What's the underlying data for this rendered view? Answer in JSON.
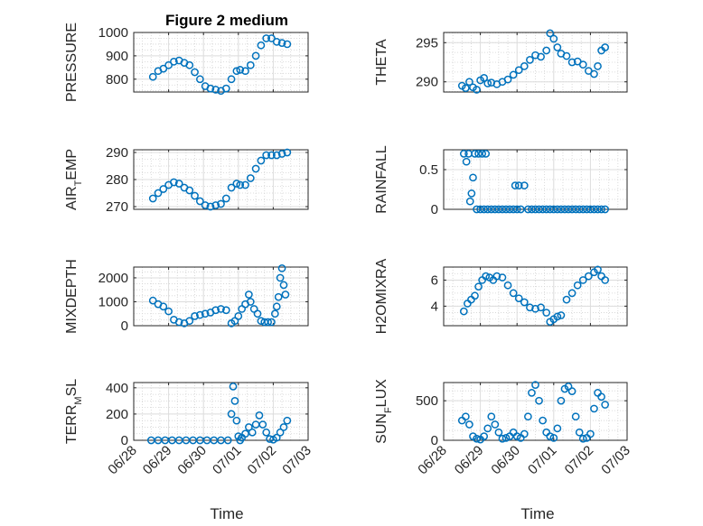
{
  "figure": {
    "title": "Figure 2 medium",
    "xlabel": "Time",
    "x_tick_labels": [
      "06/28",
      "06/29",
      "06/30",
      "07/01",
      "07/02",
      "07/03"
    ],
    "marker_color": "#0072bd"
  },
  "chart_data": [
    {
      "type": "scatter",
      "ylabel": "PRESSURE",
      "xlim": [
        "06/28",
        "07/03"
      ],
      "ylim": [
        745,
        1000
      ],
      "yticks": [
        800,
        900,
        1000
      ],
      "x": [
        0.55,
        0.7,
        0.85,
        1.0,
        1.15,
        1.3,
        1.45,
        1.6,
        1.75,
        1.9,
        2.05,
        2.2,
        2.35,
        2.5,
        2.65,
        2.8,
        2.95,
        3.05,
        3.2,
        3.35,
        3.5,
        3.65,
        3.8,
        3.95,
        4.1,
        4.25,
        4.4
      ],
      "y": [
        810,
        835,
        845,
        860,
        875,
        880,
        870,
        860,
        830,
        800,
        770,
        760,
        755,
        750,
        760,
        800,
        835,
        840,
        835,
        860,
        900,
        945,
        975,
        975,
        960,
        955,
        950
      ]
    },
    {
      "type": "scatter",
      "ylabel": "THETA",
      "xlim": [
        "06/28",
        "07/03"
      ],
      "ylim": [
        288.7,
        296.3
      ],
      "yticks": [
        290,
        295
      ],
      "x": [
        0.5,
        0.6,
        0.7,
        0.8,
        0.9,
        1.0,
        1.1,
        1.2,
        1.3,
        1.45,
        1.6,
        1.75,
        1.9,
        2.05,
        2.2,
        2.35,
        2.5,
        2.65,
        2.8,
        2.9,
        3.0,
        3.1,
        3.2,
        3.35,
        3.5,
        3.65,
        3.8,
        3.95,
        4.1,
        4.2,
        4.3,
        4.4
      ],
      "y": [
        289.5,
        289.2,
        290.0,
        289.3,
        289.0,
        290.2,
        290.5,
        289.8,
        289.9,
        289.7,
        290.0,
        290.3,
        290.9,
        291.5,
        292.0,
        292.8,
        293.4,
        293.2,
        294.0,
        296.2,
        295.5,
        294.4,
        293.6,
        293.3,
        292.5,
        292.6,
        292.2,
        291.4,
        291.0,
        292.0,
        294.0,
        294.4
      ]
    },
    {
      "type": "scatter",
      "ylabel": "AIR_TEMP",
      "ylabel_main": "AIR",
      "ylabel_sub": "T",
      "ylabel_rest": "EMP",
      "xlim": [
        "06/28",
        "07/03"
      ],
      "ylim": [
        269,
        291
      ],
      "yticks": [
        270,
        280,
        290
      ],
      "x": [
        0.55,
        0.7,
        0.85,
        1.0,
        1.15,
        1.3,
        1.45,
        1.6,
        1.75,
        1.9,
        2.05,
        2.2,
        2.35,
        2.5,
        2.65,
        2.8,
        2.95,
        3.05,
        3.2,
        3.35,
        3.5,
        3.65,
        3.8,
        3.95,
        4.1,
        4.25,
        4.4
      ],
      "y": [
        273.0,
        275.0,
        276.5,
        278.0,
        279.0,
        278.5,
        277.0,
        276.0,
        274.0,
        272.0,
        270.5,
        270.0,
        270.5,
        271.0,
        273.0,
        277.0,
        278.5,
        278.0,
        278.0,
        280.5,
        284.0,
        287.0,
        289.0,
        289.0,
        289.0,
        289.5,
        290.0
      ]
    },
    {
      "type": "scatter",
      "ylabel": "RAINFALL",
      "xlim": [
        "06/28",
        "07/03"
      ],
      "ylim": [
        0,
        0.75
      ],
      "yticks": [
        0,
        0.5
      ],
      "x": [
        0.55,
        0.62,
        0.68,
        0.72,
        0.76,
        0.8,
        0.85,
        0.9,
        0.95,
        1.0,
        1.05,
        1.1,
        1.15,
        1.2,
        1.3,
        1.4,
        1.5,
        1.6,
        1.7,
        1.8,
        1.9,
        1.95,
        2.0,
        2.05,
        2.1,
        2.2,
        2.3,
        2.4,
        2.5,
        2.6,
        2.7,
        2.8,
        2.9,
        3.0,
        3.1,
        3.2,
        3.3,
        3.4,
        3.5,
        3.6,
        3.7,
        3.8,
        3.9,
        4.0,
        4.1,
        4.2,
        4.3,
        4.4
      ],
      "y": [
        0.7,
        0.6,
        0.7,
        0.1,
        0.2,
        0.4,
        0.7,
        0.0,
        0.7,
        0.0,
        0.7,
        0.0,
        0.7,
        0.0,
        0.0,
        0.0,
        0.0,
        0.0,
        0.0,
        0.0,
        0.0,
        0.3,
        0.0,
        0.3,
        0.0,
        0.3,
        0.0,
        0.0,
        0.0,
        0.0,
        0.0,
        0.0,
        0.0,
        0.0,
        0.0,
        0.0,
        0.0,
        0.0,
        0.0,
        0.0,
        0.0,
        0.0,
        0.0,
        0.0,
        0.0,
        0.0,
        0.0,
        0.0
      ]
    },
    {
      "type": "scatter",
      "ylabel": "MIXDEPTH",
      "xlim": [
        "06/28",
        "07/03"
      ],
      "ylim": [
        0,
        2450
      ],
      "yticks": [
        0,
        1000,
        2000
      ],
      "x": [
        0.55,
        0.7,
        0.85,
        1.0,
        1.15,
        1.3,
        1.45,
        1.6,
        1.75,
        1.9,
        2.05,
        2.2,
        2.35,
        2.5,
        2.65,
        2.8,
        2.9,
        3.0,
        3.1,
        3.2,
        3.3,
        3.35,
        3.45,
        3.55,
        3.65,
        3.75,
        3.85,
        3.95,
        4.05,
        4.1,
        4.15,
        4.2,
        4.25,
        4.3,
        4.35
      ],
      "y": [
        1050,
        900,
        800,
        600,
        250,
        150,
        100,
        200,
        400,
        450,
        500,
        550,
        650,
        700,
        650,
        100,
        200,
        400,
        700,
        900,
        1300,
        1000,
        700,
        500,
        200,
        150,
        150,
        150,
        500,
        800,
        1200,
        2000,
        2400,
        1700,
        1300
      ]
    },
    {
      "type": "scatter",
      "ylabel": "H2OMIXRA",
      "xlim": [
        "06/28",
        "07/03"
      ],
      "ylim": [
        2.5,
        7
      ],
      "yticks": [
        4,
        6
      ],
      "x": [
        0.55,
        0.65,
        0.75,
        0.85,
        0.95,
        1.05,
        1.15,
        1.25,
        1.35,
        1.45,
        1.6,
        1.75,
        1.9,
        2.05,
        2.2,
        2.35,
        2.5,
        2.65,
        2.8,
        2.9,
        3.0,
        3.1,
        3.2,
        3.35,
        3.5,
        3.65,
        3.8,
        3.95,
        4.1,
        4.2,
        4.3,
        4.4
      ],
      "y": [
        3.6,
        4.2,
        4.5,
        4.8,
        5.5,
        6.0,
        6.3,
        6.2,
        6.0,
        6.3,
        6.2,
        5.6,
        5.0,
        4.6,
        4.3,
        3.9,
        3.8,
        3.9,
        3.5,
        2.8,
        3.0,
        3.2,
        3.3,
        4.5,
        5.0,
        5.6,
        6.0,
        6.3,
        6.6,
        6.8,
        6.3,
        6.0
      ]
    },
    {
      "type": "scatter",
      "ylabel": "TERR_MSL",
      "ylabel_main": "TERR",
      "ylabel_sub": "M",
      "ylabel_rest": "SL",
      "xlim": [
        "06/28",
        "07/03"
      ],
      "ylim": [
        0,
        440
      ],
      "yticks": [
        0,
        200,
        400
      ],
      "x": [
        0.5,
        0.7,
        0.9,
        1.1,
        1.3,
        1.5,
        1.7,
        1.9,
        2.1,
        2.3,
        2.5,
        2.7,
        2.8,
        2.85,
        2.9,
        2.95,
        3.0,
        3.05,
        3.1,
        3.2,
        3.3,
        3.4,
        3.5,
        3.6,
        3.7,
        3.8,
        3.9,
        4.0,
        4.1,
        4.2,
        4.3,
        4.4
      ],
      "y": [
        0,
        0,
        0,
        0,
        0,
        0,
        0,
        0,
        0,
        0,
        0,
        0,
        200,
        410,
        300,
        150,
        30,
        0,
        20,
        50,
        100,
        60,
        120,
        190,
        120,
        60,
        10,
        5,
        20,
        60,
        100,
        150
      ]
    },
    {
      "type": "scatter",
      "ylabel": "SUN_FLUX",
      "ylabel_main": "SUN",
      "ylabel_sub": "F",
      "ylabel_rest": "LUX",
      "xlim": [
        "06/28",
        "07/03"
      ],
      "ylim": [
        0,
        730
      ],
      "yticks": [
        0,
        500
      ],
      "x": [
        0.5,
        0.6,
        0.7,
        0.8,
        0.9,
        1.0,
        1.1,
        1.2,
        1.3,
        1.4,
        1.5,
        1.6,
        1.7,
        1.8,
        1.9,
        2.0,
        2.1,
        2.2,
        2.3,
        2.4,
        2.5,
        2.6,
        2.7,
        2.8,
        2.9,
        3.0,
        3.1,
        3.2,
        3.3,
        3.4,
        3.5,
        3.6,
        3.7,
        3.8,
        3.9,
        4.0,
        4.1,
        4.2,
        4.3,
        4.4
      ],
      "y": [
        250,
        300,
        200,
        50,
        20,
        10,
        50,
        150,
        300,
        200,
        100,
        20,
        30,
        50,
        100,
        50,
        30,
        80,
        300,
        600,
        700,
        500,
        250,
        100,
        50,
        30,
        150,
        500,
        650,
        680,
        620,
        300,
        100,
        20,
        30,
        80,
        400,
        600,
        550,
        450
      ]
    }
  ]
}
